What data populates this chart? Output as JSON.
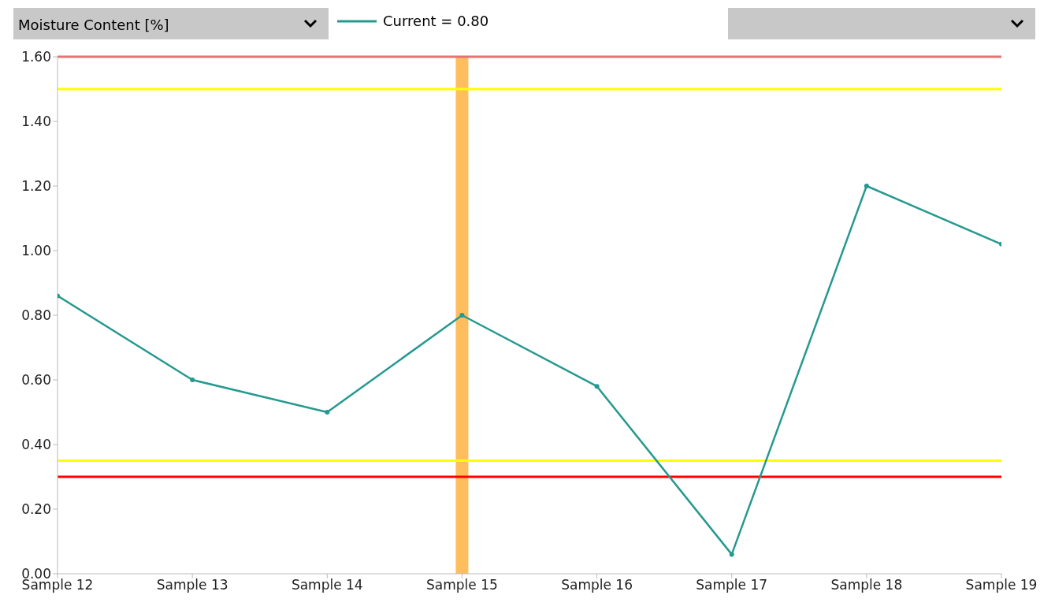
{
  "chart_data": {
    "type": "line",
    "ylabel": "Moisture Content [%]",
    "categories": [
      "Sample 12",
      "Sample 13",
      "Sample 14",
      "Sample 15",
      "Sample 16",
      "Sample 17",
      "Sample 18",
      "Sample 19"
    ],
    "series": [
      {
        "name": "Current = 0.80",
        "color": "#26998f",
        "values": [
          0.86,
          0.6,
          0.5,
          0.8,
          0.58,
          0.06,
          1.2,
          1.02
        ]
      }
    ],
    "ylim": [
      0,
      1.6
    ],
    "yticks": [
      {
        "value": 0,
        "label": "0.00"
      },
      {
        "value": 0.2,
        "label": "0.20"
      },
      {
        "value": 0.4,
        "label": "0.40"
      },
      {
        "value": 0.6,
        "label": "0.60"
      },
      {
        "value": 0.8,
        "label": "0.80"
      },
      {
        "value": 1,
        "label": "1.00"
      },
      {
        "value": 1.2,
        "label": "1.20"
      },
      {
        "value": 1.4,
        "label": "1.40"
      },
      {
        "value": 1.6,
        "label": "1.60"
      }
    ],
    "ref_lines": [
      {
        "axis": "y",
        "value": 1.6,
        "color": "#e57373"
      },
      {
        "axis": "y",
        "value": 1.5,
        "color": "#ffff00"
      },
      {
        "axis": "y",
        "value": 0.35,
        "color": "#ffff00"
      },
      {
        "axis": "y",
        "value": 0.3,
        "color": "#ff0000"
      },
      {
        "axis": "x",
        "value": "Sample 15",
        "color": "#ffb74d"
      }
    ],
    "grid": false,
    "legend": "top",
    "marker": "circle",
    "line_style": "solid"
  }
}
